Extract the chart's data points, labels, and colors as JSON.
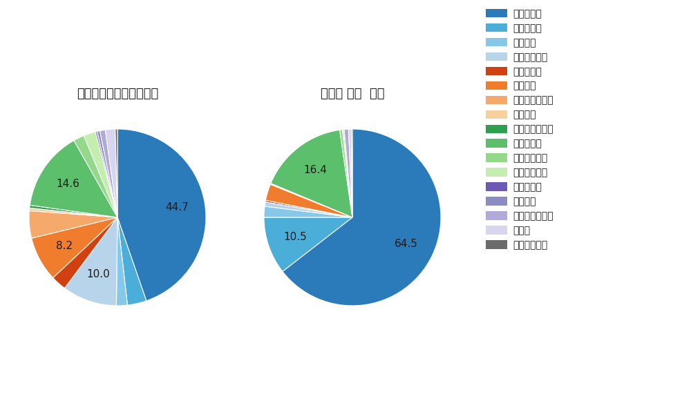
{
  "pitch_types": [
    "ストレート",
    "ツーシーム",
    "シュート",
    "カットボール",
    "スプリット",
    "フォーク",
    "チェンジアップ",
    "シンカー",
    "高速スライダー",
    "スライダー",
    "縦スライダー",
    "パワーカーブ",
    "スクリュー",
    "ナックル",
    "ナックルカーブ",
    "カーブ",
    "スローカーブ"
  ],
  "colors": [
    "#2b7bba",
    "#4aaed9",
    "#85c8e8",
    "#b8d4eb",
    "#d04010",
    "#f07d2e",
    "#f5a96b",
    "#f7d09e",
    "#2e9e4f",
    "#5cbf6b",
    "#94d88a",
    "#c4edb0",
    "#6b5bb5",
    "#8c8bc4",
    "#b0aad9",
    "#d8d5f0",
    "#6b6b6b"
  ],
  "left_values": [
    44.7,
    3.5,
    2.0,
    10.0,
    2.8,
    8.2,
    5.0,
    0.5,
    0.5,
    14.6,
    2.0,
    2.2,
    0.3,
    0.5,
    1.0,
    1.8,
    0.4
  ],
  "right_values": [
    64.5,
    10.5,
    2.0,
    0.8,
    0.3,
    3.0,
    0.2,
    0.0,
    0.0,
    16.4,
    0.5,
    0.3,
    0.0,
    0.0,
    0.8,
    0.5,
    0.2
  ],
  "left_show": {
    "44.7": 44.7,
    "10.0": 10.0,
    "8.2": 8.2,
    "14.6": 14.6
  },
  "right_show": {
    "64.5": 64.5,
    "10.5": 10.5,
    "16.4": 16.4
  },
  "title_left": "セ・リーグ全プレイヤー",
  "title_right": "大瀬良 大地  選手",
  "background_color": "#ffffff",
  "text_color": "#1a1a1a"
}
